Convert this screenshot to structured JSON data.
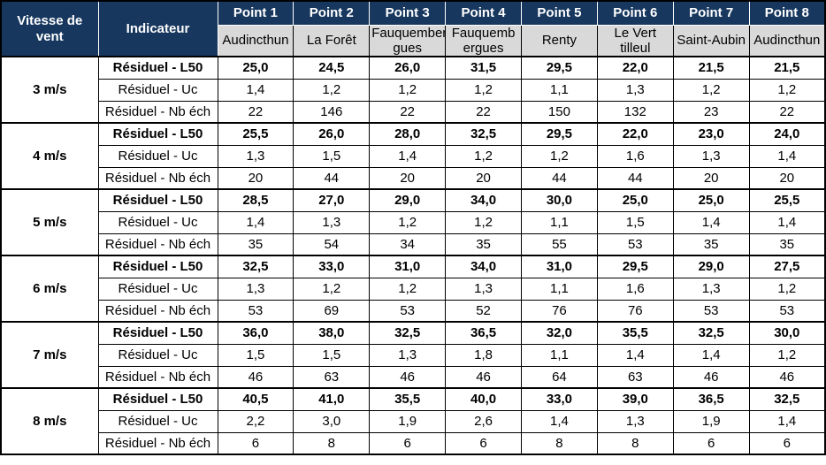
{
  "colors": {
    "header_bg": "#17375E",
    "header_text": "#FFFFFF",
    "subheader_bg": "#D9D9D9",
    "body_text": "#000000",
    "border": "#000000"
  },
  "chart_data": {
    "type": "table",
    "corner": {
      "col1": "Vitesse de vent",
      "col2": "Indicateur"
    },
    "points": [
      "Point 1",
      "Point 2",
      "Point 3",
      "Point 4",
      "Point 5",
      "Point 6",
      "Point 7",
      "Point 8"
    ],
    "locations": [
      "Audincthun",
      "La Forêt",
      "Fauquember\ngues",
      "Fauquemb\nergues",
      "Renty",
      "Le Vert\ntilleul",
      "Saint-Aubin",
      "Audincthun"
    ],
    "indicators": [
      "Résiduel - L50",
      "Résiduel - Uc",
      "Résiduel - Nb éch"
    ],
    "groups": [
      {
        "wind_speed": "3 m/s",
        "rows": [
          {
            "indicator": "Résiduel - L50",
            "values": [
              "25,0",
              "24,5",
              "26,0",
              "31,5",
              "29,5",
              "22,0",
              "21,5",
              "21,5"
            ]
          },
          {
            "indicator": "Résiduel - Uc",
            "values": [
              "1,4",
              "1,2",
              "1,2",
              "1,2",
              "1,1",
              "1,3",
              "1,2",
              "1,2"
            ]
          },
          {
            "indicator": "Résiduel - Nb éch",
            "values": [
              "22",
              "146",
              "22",
              "22",
              "150",
              "132",
              "23",
              "22"
            ]
          }
        ]
      },
      {
        "wind_speed": "4 m/s",
        "rows": [
          {
            "indicator": "Résiduel - L50",
            "values": [
              "25,5",
              "26,0",
              "28,0",
              "32,5",
              "29,5",
              "22,0",
              "23,0",
              "24,0"
            ]
          },
          {
            "indicator": "Résiduel - Uc",
            "values": [
              "1,3",
              "1,5",
              "1,4",
              "1,2",
              "1,2",
              "1,6",
              "1,3",
              "1,4"
            ]
          },
          {
            "indicator": "Résiduel - Nb éch",
            "values": [
              "20",
              "44",
              "20",
              "20",
              "44",
              "44",
              "20",
              "20"
            ]
          }
        ]
      },
      {
        "wind_speed": "5 m/s",
        "rows": [
          {
            "indicator": "Résiduel - L50",
            "values": [
              "28,5",
              "27,0",
              "29,0",
              "34,0",
              "30,0",
              "25,0",
              "25,0",
              "25,5"
            ]
          },
          {
            "indicator": "Résiduel - Uc",
            "values": [
              "1,4",
              "1,3",
              "1,2",
              "1,2",
              "1,1",
              "1,5",
              "1,4",
              "1,4"
            ]
          },
          {
            "indicator": "Résiduel - Nb éch",
            "values": [
              "35",
              "54",
              "34",
              "35",
              "55",
              "53",
              "35",
              "35"
            ]
          }
        ]
      },
      {
        "wind_speed": "6 m/s",
        "rows": [
          {
            "indicator": "Résiduel - L50",
            "values": [
              "32,5",
              "33,0",
              "31,0",
              "34,0",
              "31,0",
              "29,5",
              "29,0",
              "27,5"
            ]
          },
          {
            "indicator": "Résiduel - Uc",
            "values": [
              "1,3",
              "1,2",
              "1,2",
              "1,3",
              "1,1",
              "1,6",
              "1,3",
              "1,2"
            ]
          },
          {
            "indicator": "Résiduel - Nb éch",
            "values": [
              "53",
              "69",
              "53",
              "52",
              "76",
              "76",
              "53",
              "53"
            ]
          }
        ]
      },
      {
        "wind_speed": "7 m/s",
        "rows": [
          {
            "indicator": "Résiduel - L50",
            "values": [
              "36,0",
              "38,0",
              "32,5",
              "36,5",
              "32,0",
              "35,5",
              "32,5",
              "30,0"
            ]
          },
          {
            "indicator": "Résiduel - Uc",
            "values": [
              "1,5",
              "1,5",
              "1,3",
              "1,8",
              "1,1",
              "1,4",
              "1,4",
              "1,2"
            ]
          },
          {
            "indicator": "Résiduel - Nb éch",
            "values": [
              "46",
              "63",
              "46",
              "46",
              "64",
              "63",
              "46",
              "46"
            ]
          }
        ]
      },
      {
        "wind_speed": "8 m/s",
        "rows": [
          {
            "indicator": "Résiduel - L50",
            "values": [
              "40,5",
              "41,0",
              "35,5",
              "40,0",
              "33,0",
              "39,0",
              "36,5",
              "32,5"
            ]
          },
          {
            "indicator": "Résiduel - Uc",
            "values": [
              "2,2",
              "3,0",
              "1,9",
              "2,6",
              "1,4",
              "1,3",
              "1,9",
              "1,4"
            ]
          },
          {
            "indicator": "Résiduel - Nb éch",
            "values": [
              "6",
              "8",
              "6",
              "6",
              "8",
              "8",
              "6",
              "6"
            ]
          }
        ]
      }
    ]
  }
}
